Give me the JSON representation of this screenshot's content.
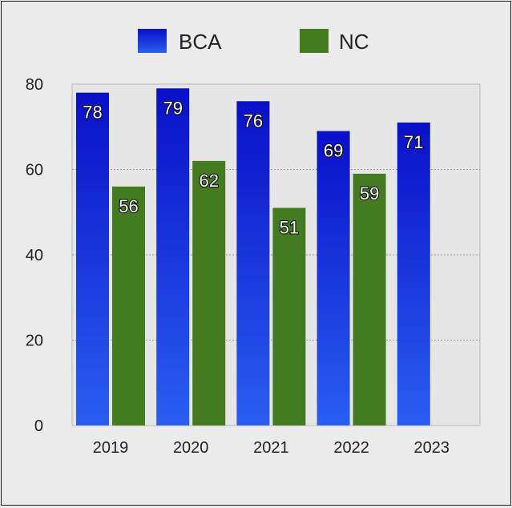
{
  "chart_data": {
    "type": "bar",
    "categories": [
      "2019",
      "2020",
      "2021",
      "2022",
      "2023"
    ],
    "series": [
      {
        "name": "BCA",
        "values": [
          78,
          79,
          76,
          69,
          71
        ]
      },
      {
        "name": "NC",
        "values": [
          56,
          62,
          51,
          59,
          null
        ]
      }
    ],
    "ylim": [
      0,
      80
    ],
    "yticks": [
      0,
      20,
      40,
      60,
      80
    ],
    "grid": true,
    "legend_position": "top",
    "colors": {
      "BCA_top": "#0a10c8",
      "BCA_bottom": "#2a5ef0",
      "NC": "#447a20",
      "plot_bg": "#e6e6e6",
      "grid": "#9a9a9a"
    }
  }
}
